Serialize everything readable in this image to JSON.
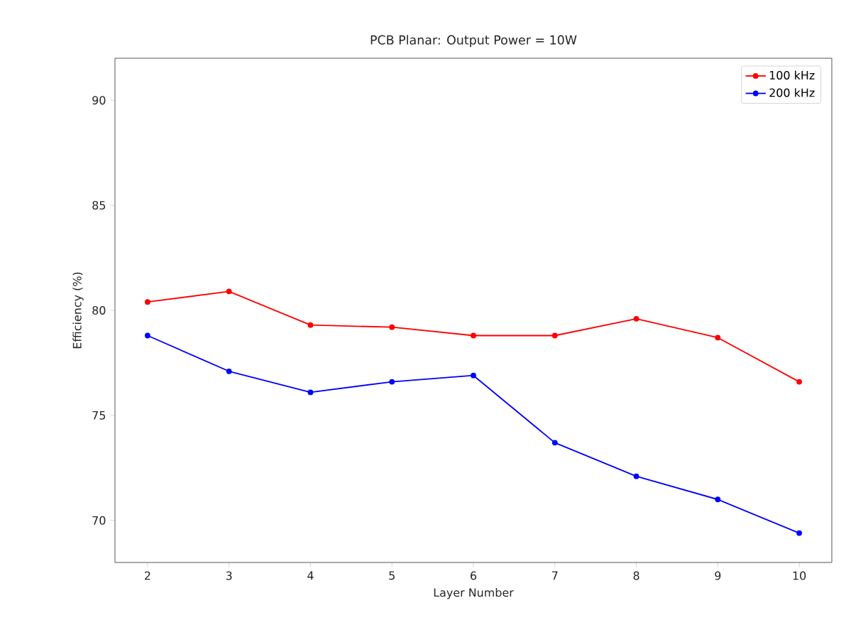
{
  "chart_data": {
    "type": "line",
    "title": "PCB Planar: Output Power = 10W",
    "xlabel": "Layer Number",
    "ylabel": "Efficiency (%)",
    "x": [
      2,
      3,
      4,
      5,
      6,
      7,
      8,
      9,
      10
    ],
    "series": [
      {
        "name": "100 kHz",
        "color": "#ff0000",
        "values": [
          80.4,
          80.9,
          79.3,
          79.2,
          78.8,
          78.8,
          79.6,
          78.7,
          76.6
        ]
      },
      {
        "name": "200 kHz",
        "color": "#0000ff",
        "values": [
          78.8,
          77.1,
          76.1,
          76.6,
          76.9,
          73.7,
          72.1,
          71.0,
          69.4
        ]
      }
    ],
    "xlim": [
      1.6,
      10.4
    ],
    "ylim": [
      68,
      92
    ],
    "xticks": [
      2,
      3,
      4,
      5,
      6,
      7,
      8,
      9,
      10
    ],
    "yticks": [
      70,
      75,
      80,
      85,
      90
    ],
    "legend": "top right",
    "marker": "circle",
    "line_style": "solid",
    "grid": false
  }
}
